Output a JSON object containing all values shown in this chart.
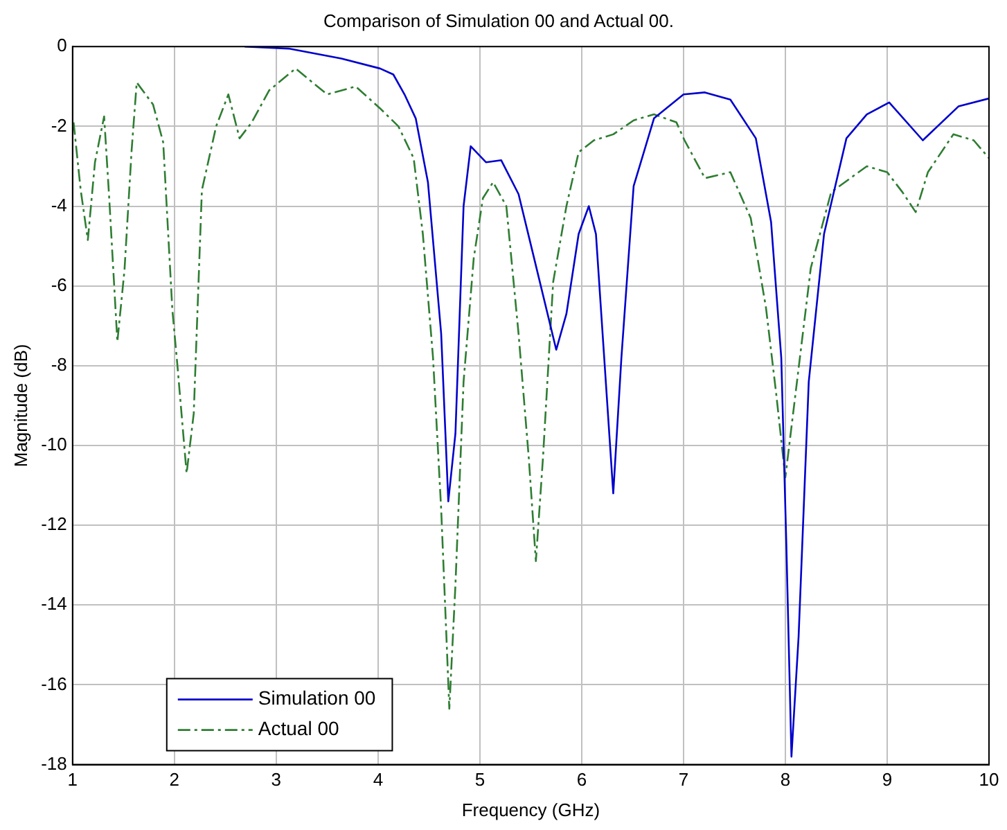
{
  "chart_data": {
    "type": "line",
    "title": "Comparison of Simulation 00 and Actual 00.",
    "xlabel": "Frequency (GHz)",
    "ylabel": "Magnitude (dB)",
    "xlim": [
      1,
      10
    ],
    "xticks": [
      1,
      2,
      3,
      4,
      5,
      6,
      7,
      8,
      9,
      10
    ],
    "ylim": [
      -18,
      0
    ],
    "yticks": [
      -18,
      -16,
      -14,
      -12,
      -10,
      -8,
      -6,
      -4,
      -2,
      0
    ],
    "grid": true,
    "legend": "bottom left",
    "series": [
      {
        "name": "Simulation 00",
        "color": "#0000cc",
        "line_style": "solid",
        "x": [
          2.69,
          3.12,
          3.64,
          4.02,
          4.15,
          4.26,
          4.37,
          4.49,
          4.62,
          4.69,
          4.76,
          4.84,
          4.91,
          5.06,
          5.21,
          5.38,
          5.57,
          5.75,
          5.85,
          5.97,
          6.07,
          6.14,
          6.31,
          6.39,
          6.51,
          6.71,
          7.0,
          7.21,
          7.46,
          7.71,
          7.86,
          7.96,
          8.01,
          8.06,
          8.13,
          8.23,
          8.38,
          8.6,
          8.8,
          9.02,
          9.35,
          9.7,
          10.0
        ],
        "values": [
          0,
          -0.05,
          -0.3,
          -0.55,
          -0.7,
          -1.2,
          -1.8,
          -3.4,
          -7.2,
          -11.4,
          -9.7,
          -4.0,
          -2.5,
          -2.9,
          -2.85,
          -3.7,
          -5.7,
          -7.6,
          -6.7,
          -4.7,
          -4.0,
          -4.7,
          -11.2,
          -7.8,
          -3.5,
          -1.8,
          -1.2,
          -1.15,
          -1.33,
          -2.3,
          -4.4,
          -7.8,
          -12.5,
          -17.8,
          -14.8,
          -8.4,
          -4.7,
          -2.3,
          -1.7,
          -1.4,
          -2.35,
          -1.5,
          -1.3
        ]
      },
      {
        "name": "Actual 00",
        "color": "#2e7d32",
        "line_style": "dashed",
        "x": [
          1.01,
          1.08,
          1.15,
          1.22,
          1.31,
          1.36,
          1.44,
          1.51,
          1.58,
          1.63,
          1.79,
          1.89,
          1.98,
          2.03,
          2.12,
          2.19,
          2.27,
          2.41,
          2.53,
          2.64,
          2.76,
          2.93,
          3.19,
          3.5,
          3.78,
          4.02,
          4.2,
          4.35,
          4.44,
          4.54,
          4.62,
          4.67,
          4.7,
          4.76,
          4.84,
          4.94,
          5.03,
          5.13,
          5.26,
          5.38,
          5.48,
          5.55,
          5.62,
          5.72,
          5.85,
          5.97,
          6.12,
          6.31,
          6.51,
          6.71,
          6.93,
          7.01,
          7.21,
          7.46,
          7.66,
          7.81,
          7.91,
          8.0,
          8.1,
          8.25,
          8.45,
          8.8,
          9.0,
          9.15,
          9.28,
          9.4,
          9.65,
          9.85,
          10.0
        ],
        "values": [
          -1.9,
          -3.6,
          -4.85,
          -2.9,
          -1.75,
          -3.8,
          -7.4,
          -5.6,
          -2.6,
          -0.9,
          -1.45,
          -2.4,
          -6.6,
          -8.0,
          -10.7,
          -9.2,
          -3.6,
          -2.0,
          -1.2,
          -2.3,
          -1.9,
          -1.1,
          -0.55,
          -1.2,
          -1.0,
          -1.55,
          -2.0,
          -2.8,
          -4.7,
          -7.8,
          -11.6,
          -14.7,
          -16.6,
          -13.5,
          -8.4,
          -5.3,
          -3.8,
          -3.4,
          -4.0,
          -7.2,
          -10.3,
          -12.9,
          -10.3,
          -5.9,
          -4.0,
          -2.65,
          -2.35,
          -2.2,
          -1.85,
          -1.7,
          -1.9,
          -2.35,
          -3.3,
          -3.15,
          -4.3,
          -6.55,
          -8.7,
          -10.8,
          -8.7,
          -5.55,
          -3.65,
          -3.0,
          -3.15,
          -3.65,
          -4.15,
          -3.15,
          -2.2,
          -2.35,
          -2.8
        ]
      }
    ]
  }
}
